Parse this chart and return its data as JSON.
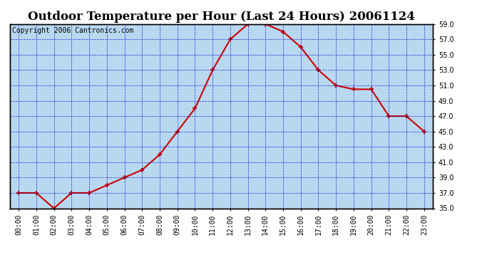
{
  "title": "Outdoor Temperature per Hour (Last 24 Hours) 20061124",
  "copyright_text": "Copyright 2006 Cantronics.com",
  "hours": [
    "00:00",
    "01:00",
    "02:00",
    "03:00",
    "04:00",
    "05:00",
    "06:00",
    "07:00",
    "08:00",
    "09:00",
    "10:00",
    "11:00",
    "12:00",
    "13:00",
    "14:00",
    "15:00",
    "16:00",
    "17:00",
    "18:00",
    "19:00",
    "20:00",
    "21:00",
    "22:00",
    "23:00"
  ],
  "temps": [
    37.0,
    37.0,
    35.0,
    37.0,
    37.0,
    38.0,
    39.0,
    40.0,
    42.0,
    45.0,
    48.0,
    53.0,
    57.0,
    59.0,
    59.0,
    58.0,
    56.0,
    53.0,
    51.0,
    50.5,
    50.5,
    47.0,
    47.0,
    45.0
  ],
  "ylim": [
    35.0,
    59.0
  ],
  "yticks": [
    35.0,
    37.0,
    39.0,
    41.0,
    43.0,
    45.0,
    47.0,
    49.0,
    51.0,
    53.0,
    55.0,
    57.0,
    59.0
  ],
  "line_color": "#cc0000",
  "marker_color": "#cc0000",
  "bg_color": "#b8d8f0",
  "grid_color": "#0000cc",
  "title_fontsize": 12,
  "copyright_fontsize": 7,
  "tick_fontsize": 7,
  "fig_width": 6.9,
  "fig_height": 3.75,
  "dpi": 100
}
